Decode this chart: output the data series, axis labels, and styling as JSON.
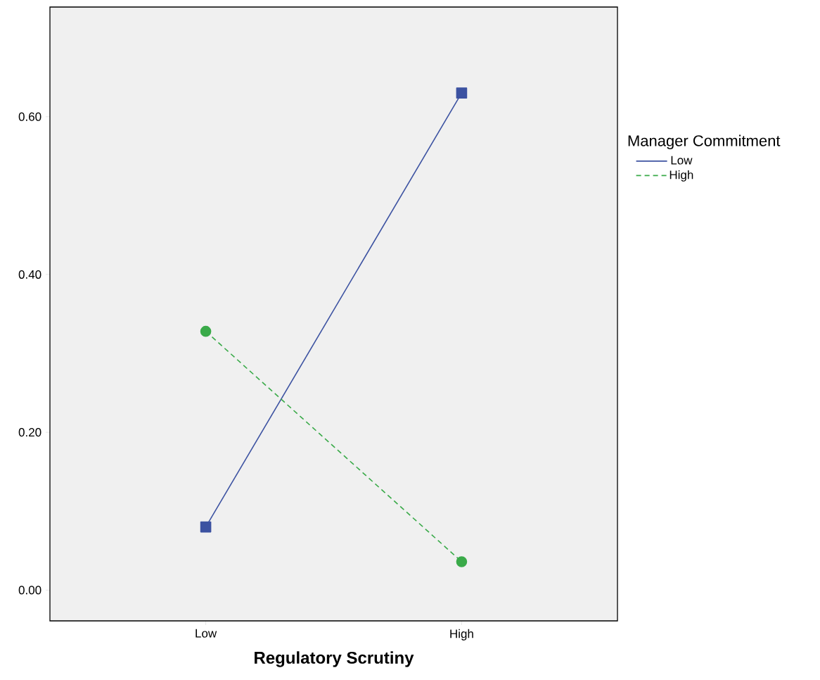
{
  "chart_data": {
    "type": "line",
    "xlabel": "Regulatory Scrutiny",
    "legend_title": "Manager Commitment",
    "categories": [
      "Low",
      "High"
    ],
    "series": [
      {
        "name": "Low",
        "color": "#3c52a1",
        "values": [
          0.08,
          0.63
        ],
        "marker": "square",
        "line_style": "solid"
      },
      {
        "name": "High",
        "color": "#3aaa49",
        "values": [
          0.328,
          0.036
        ],
        "marker": "circle",
        "line_style": "dashed"
      }
    ],
    "ylim": [
      -0.039,
      0.739
    ],
    "yticks": [
      {
        "value": 0,
        "label": "0.00"
      },
      {
        "value": 0.2,
        "label": "0.20"
      },
      {
        "value": 0.4,
        "label": "0.40"
      },
      {
        "value": 0.6,
        "label": "0.60"
      }
    ],
    "grid": false,
    "legend": "right"
  }
}
